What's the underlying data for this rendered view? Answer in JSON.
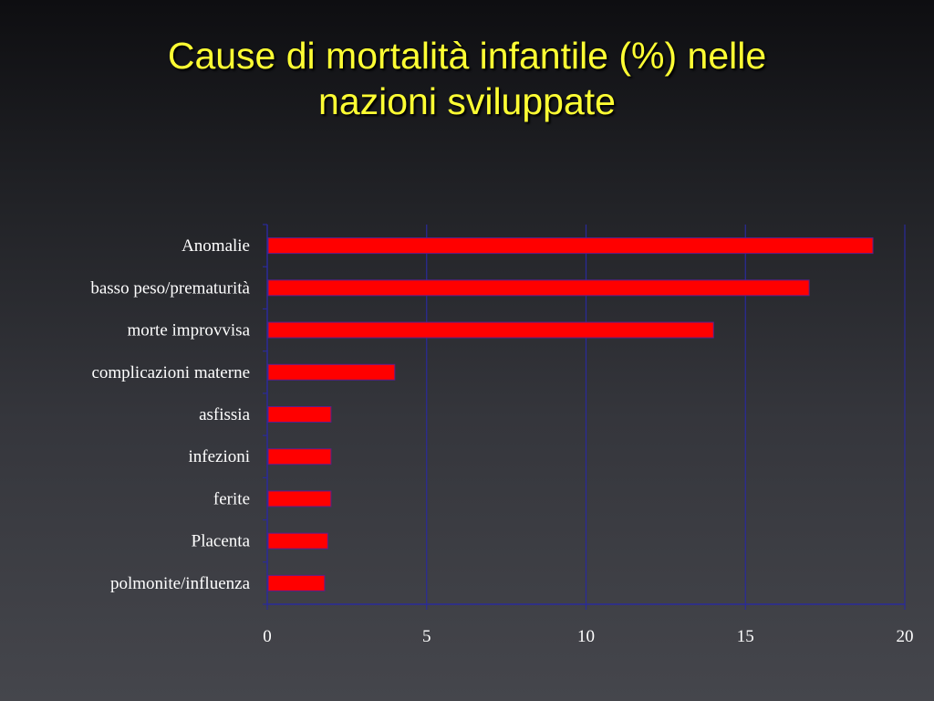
{
  "title": {
    "line1": "Cause di mortalità infantile (%) nelle",
    "line2": "nazioni sviluppate"
  },
  "colors": {
    "bar_fill": "#ff0000",
    "bar_stroke": "#5a1f8a",
    "gridline": "#2a2a9a",
    "axis": "#2a2a9a",
    "title": "#ffff33"
  },
  "chart_data": {
    "type": "bar",
    "orientation": "horizontal",
    "categories": [
      "Anomalie",
      "basso peso/prematurità",
      "morte improvvisa",
      "complicazioni materne",
      "asfissia",
      "infezioni",
      "ferite",
      "Placenta",
      "polmonite/influenza"
    ],
    "values": [
      19,
      17,
      14,
      4,
      2,
      2,
      2,
      1.9,
      1.8
    ],
    "xlim": [
      0,
      20
    ],
    "xticks": [
      0,
      5,
      10,
      15,
      20
    ],
    "grid": true,
    "legend": "none",
    "xlabel": "",
    "ylabel": ""
  }
}
